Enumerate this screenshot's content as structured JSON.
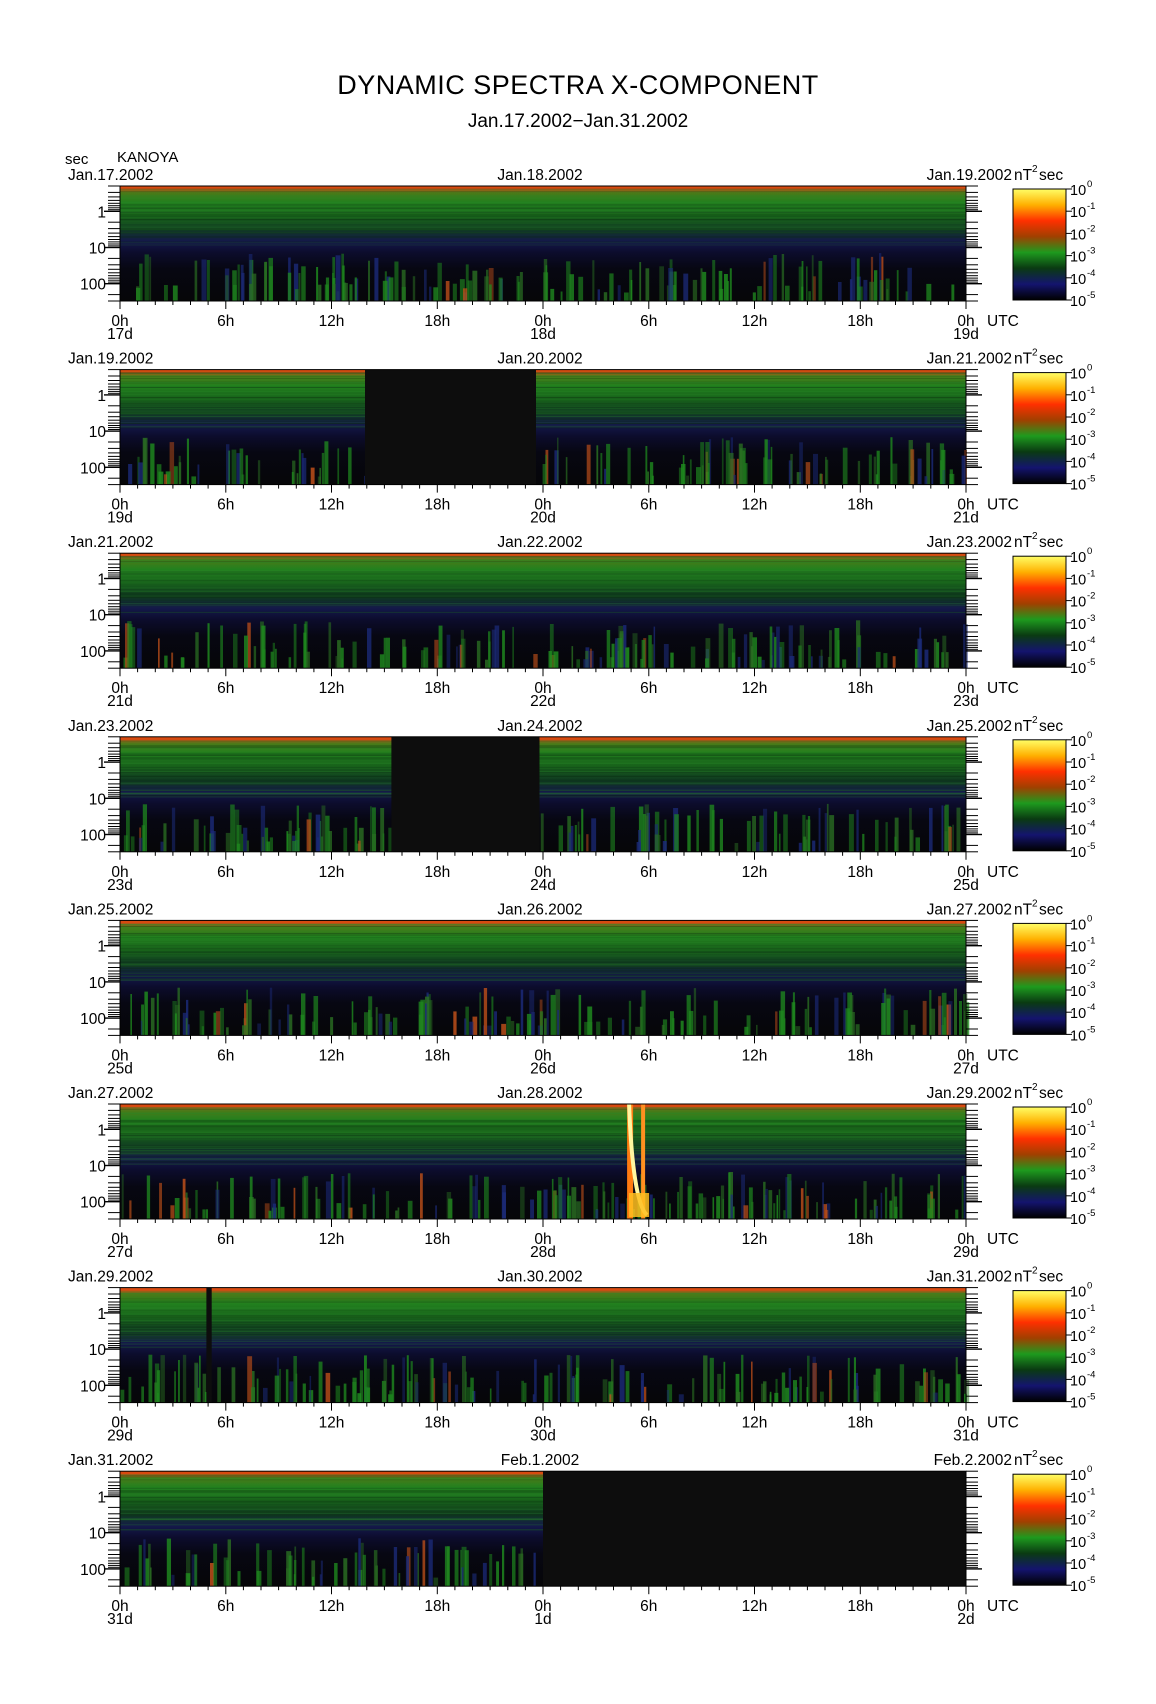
{
  "title": "DYNAMIC SPECTRA X-COMPONENT",
  "subtitle": "Jan.17.2002−Jan.31.2002",
  "chart_data": {
    "type": "heatmap",
    "title": "DYNAMIC SPECTRA X-COMPONENT",
    "subtitle": "Jan.17.2002−Jan.31.2002",
    "station": "KANOYA",
    "y_unit": "sec",
    "y_axis": {
      "label": "sec",
      "scale": "log",
      "ticks": [
        "1",
        "10",
        "100"
      ],
      "range_sec": [
        0.2,
        300
      ]
    },
    "x_axis": {
      "ticks": [
        "0h",
        "6h",
        "12h",
        "18h",
        "0h",
        "6h",
        "12h",
        "18h",
        "0h"
      ],
      "unit": "UTC",
      "span_hours": 48
    },
    "colorbar": {
      "unit": "nT²sec",
      "unit_base": "nT",
      "unit_sup": "2",
      "unit_after": "sec",
      "scale": "log",
      "labels": [
        {
          "base": "10",
          "exp": "0"
        },
        {
          "base": "10",
          "exp": "-1"
        },
        {
          "base": "10",
          "exp": "-2"
        },
        {
          "base": "10",
          "exp": "-3"
        },
        {
          "base": "10",
          "exp": "-4"
        },
        {
          "base": "10",
          "exp": "-5"
        }
      ],
      "colors": [
        "#ffff66",
        "#ffb000",
        "#ff3000",
        "#a04000",
        "#1e9a1e",
        "#0a3a12",
        "#14146e",
        "#000000"
      ]
    },
    "panels": [
      {
        "date_left": "Jan.17.2002",
        "date_mid": "Jan.18.2002",
        "date_right": "Jan.19.2002",
        "day_labels": [
          "17d",
          "18d",
          "19d"
        ],
        "data_gaps_h": [],
        "event_h": null
      },
      {
        "date_left": "Jan.19.2002",
        "date_mid": "Jan.20.2002",
        "date_right": "Jan.21.2002",
        "day_labels": [
          "19d",
          "20d",
          "21d"
        ],
        "data_gaps_h": [
          [
            13.9,
            23.6
          ]
        ],
        "event_h": null
      },
      {
        "date_left": "Jan.21.2002",
        "date_mid": "Jan.22.2002",
        "date_right": "Jan.23.2002",
        "day_labels": [
          "21d",
          "22d",
          "23d"
        ],
        "data_gaps_h": [],
        "event_h": null
      },
      {
        "date_left": "Jan.23.2002",
        "date_mid": "Jan.24.2002",
        "date_right": "Jan.25.2002",
        "day_labels": [
          "23d",
          "24d",
          "25d"
        ],
        "data_gaps_h": [
          [
            15.4,
            23.8
          ]
        ],
        "event_h": null
      },
      {
        "date_left": "Jan.25.2002",
        "date_mid": "Jan.26.2002",
        "date_right": "Jan.27.2002",
        "day_labels": [
          "25d",
          "26d",
          "27d"
        ],
        "data_gaps_h": [],
        "event_h": null
      },
      {
        "date_left": "Jan.27.2002",
        "date_mid": "Jan.28.2002",
        "date_right": "Jan.29.2002",
        "day_labels": [
          "27d",
          "28d",
          "29d"
        ],
        "data_gaps_h": [],
        "event_h": 29.0
      },
      {
        "date_left": "Jan.29.2002",
        "date_mid": "Jan.30.2002",
        "date_right": "Jan.31.2002",
        "day_labels": [
          "29d",
          "30d",
          "31d"
        ],
        "data_gaps_h": [
          [
            4.9,
            5.2
          ]
        ],
        "event_h": null
      },
      {
        "date_left": "Jan.31.2002",
        "date_mid": "Feb.1.2002",
        "date_right": "Feb.2.2002",
        "day_labels": [
          "31d",
          "1d",
          "2d"
        ],
        "data_gaps_h": [
          [
            24.0,
            48.0
          ]
        ],
        "event_h": null
      }
    ]
  }
}
